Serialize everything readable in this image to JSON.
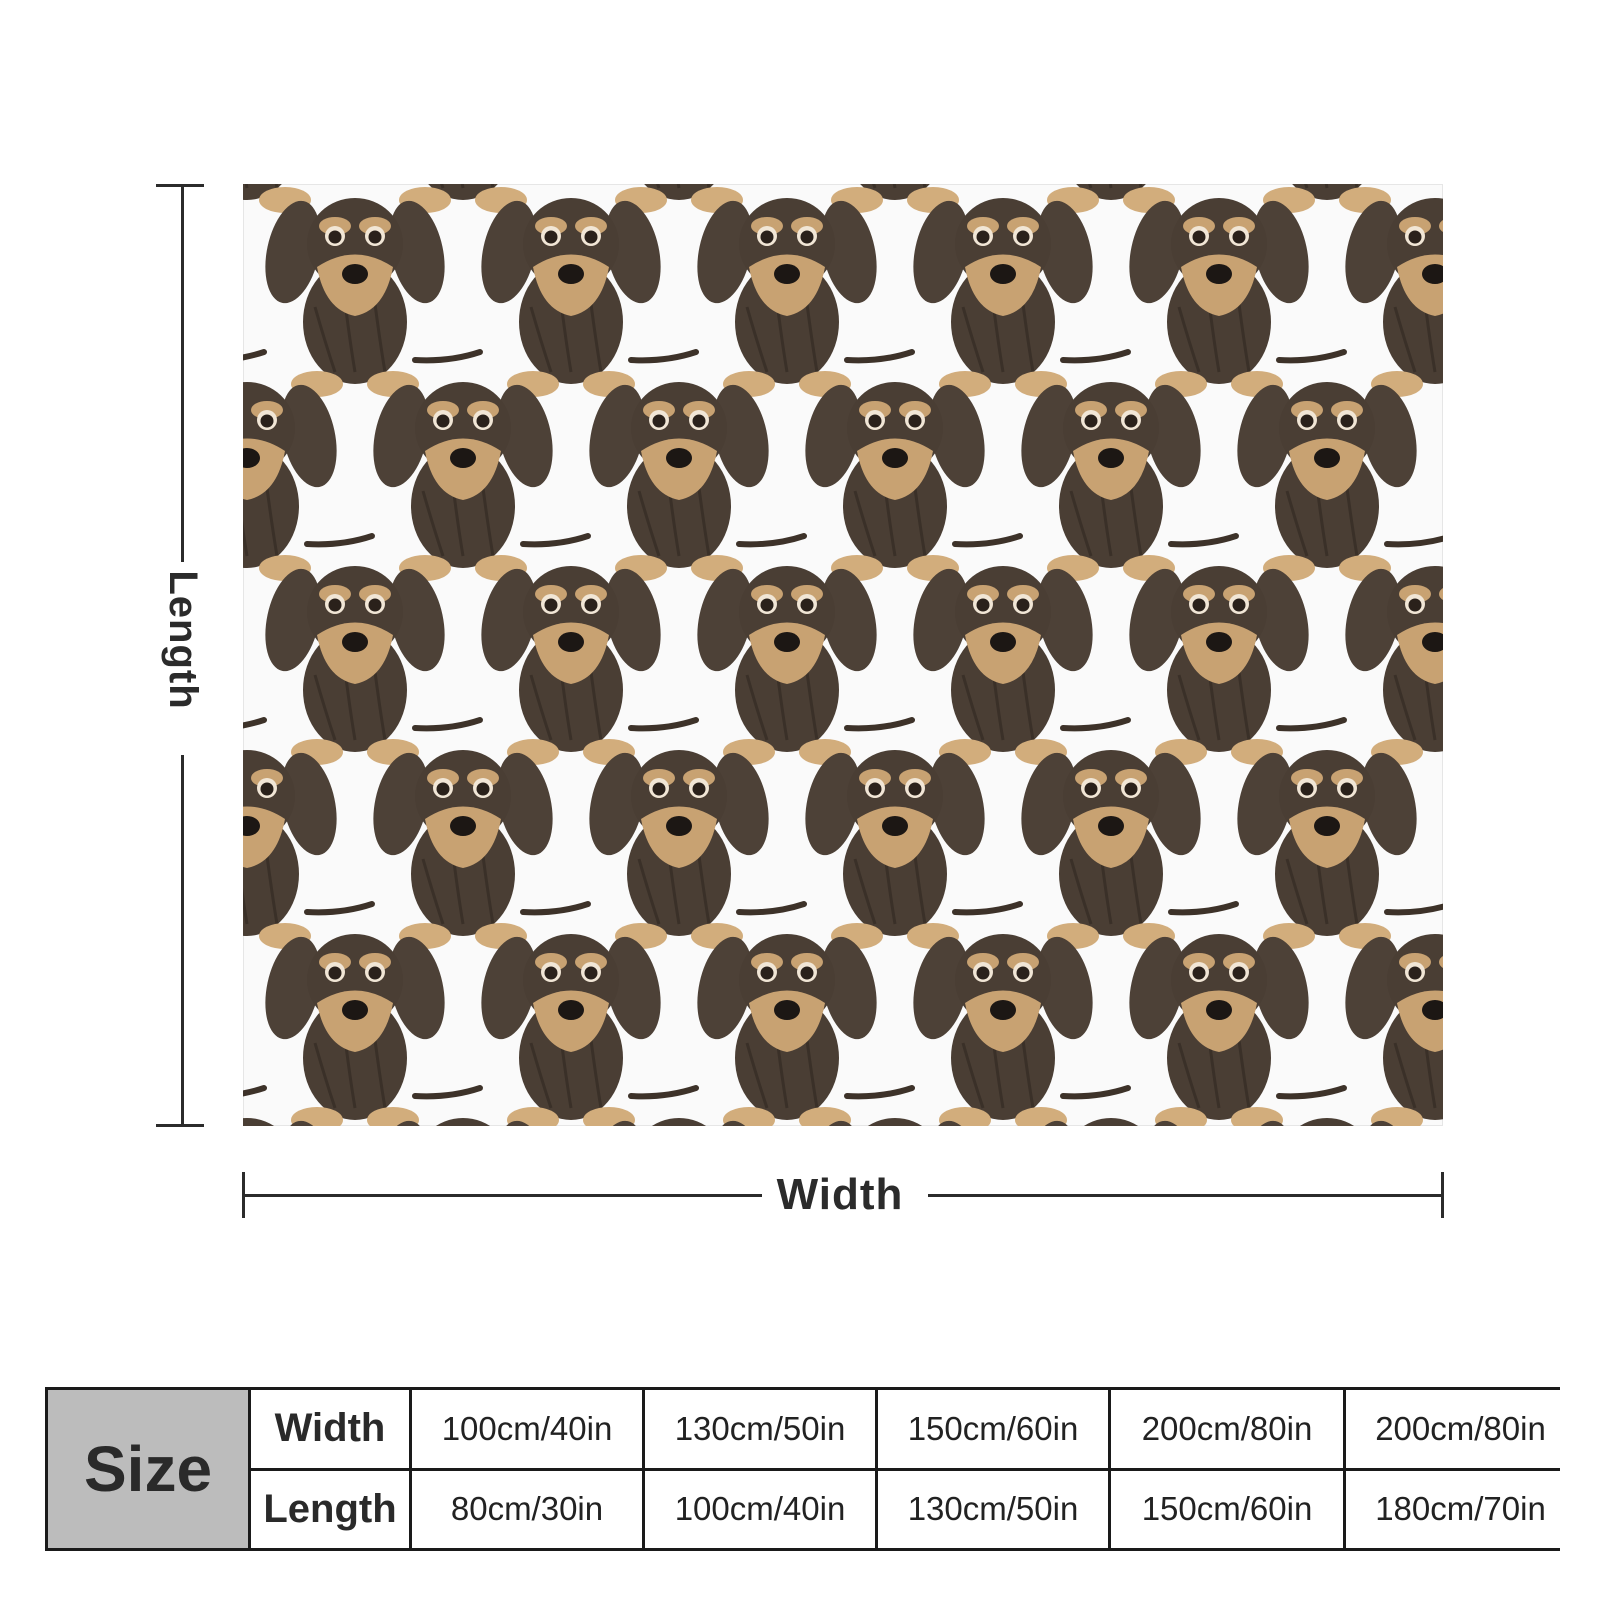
{
  "product": {
    "pattern_icon": "wire-haired-dachshund-puppy-icon",
    "colors": {
      "coat": "#4a3e34",
      "tan": "#c8a272",
      "background": "#fafafa"
    }
  },
  "dimensions": {
    "length_label": "Length",
    "width_label": "Width"
  },
  "size_table": {
    "title": "Size",
    "row_headers": [
      "Width",
      "Length"
    ],
    "columns": [
      {
        "width": "100cm/40in",
        "length": "80cm/30in"
      },
      {
        "width": "130cm/50in",
        "length": "100cm/40in"
      },
      {
        "width": "150cm/60in",
        "length": "130cm/50in"
      },
      {
        "width": "200cm/80in",
        "length": "150cm/60in"
      },
      {
        "width": "200cm/80in",
        "length": "180cm/70in"
      }
    ]
  }
}
